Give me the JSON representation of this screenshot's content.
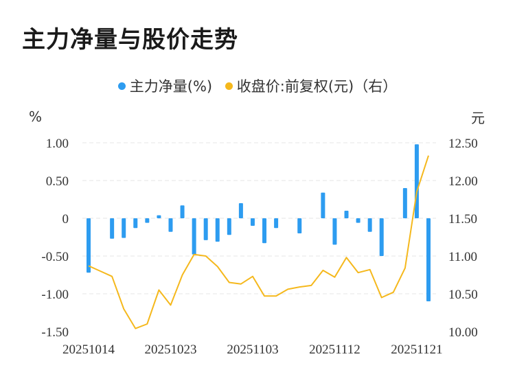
{
  "title": "主力净量与股价走势",
  "legend": [
    {
      "label": "主力净量(%)",
      "color": "#2d9cf0"
    },
    {
      "label": "收盘价:前复权(元)（右）",
      "color": "#f5b81c"
    }
  ],
  "units": {
    "left": "%",
    "right": "元"
  },
  "chart_data": {
    "type": "bar+line",
    "ylim_left": [
      -1.5,
      1.0
    ],
    "ylim_right": [
      10.0,
      12.5
    ],
    "yticks_left": [
      "1.00",
      "0.50",
      "0",
      "-0.50",
      "-1.00",
      "-1.50"
    ],
    "yticks_right": [
      "12.50",
      "12.00",
      "11.50",
      "11.00",
      "10.50",
      "10.00"
    ],
    "xtick_labels": [
      "20251014",
      "20251023",
      "20251103",
      "20251112",
      "20251121"
    ],
    "grid": true,
    "series": [
      {
        "name": "主力净量(%)",
        "kind": "bar",
        "color": "#2d9cf0",
        "values": [
          -0.72,
          0.0,
          -0.27,
          -0.26,
          -0.13,
          -0.06,
          0.04,
          -0.18,
          0.17,
          -0.48,
          -0.29,
          -0.31,
          -0.22,
          0.2,
          -0.1,
          -0.33,
          -0.13,
          0.0,
          -0.2,
          0.0,
          0.34,
          -0.35,
          0.1,
          -0.06,
          -0.18,
          -0.5,
          0.0,
          0.4,
          0.98,
          -1.1
        ]
      },
      {
        "name": "收盘价:前复权(元)（右）",
        "kind": "line",
        "color": "#f5b81c",
        "values": [
          10.87,
          10.8,
          10.73,
          10.3,
          10.04,
          10.1,
          10.55,
          10.35,
          10.75,
          11.02,
          11.0,
          10.86,
          10.65,
          10.63,
          10.73,
          10.47,
          10.47,
          10.56,
          10.59,
          10.61,
          10.81,
          10.72,
          10.98,
          10.78,
          10.82,
          10.45,
          10.52,
          10.84,
          11.85,
          12.33
        ]
      }
    ]
  }
}
